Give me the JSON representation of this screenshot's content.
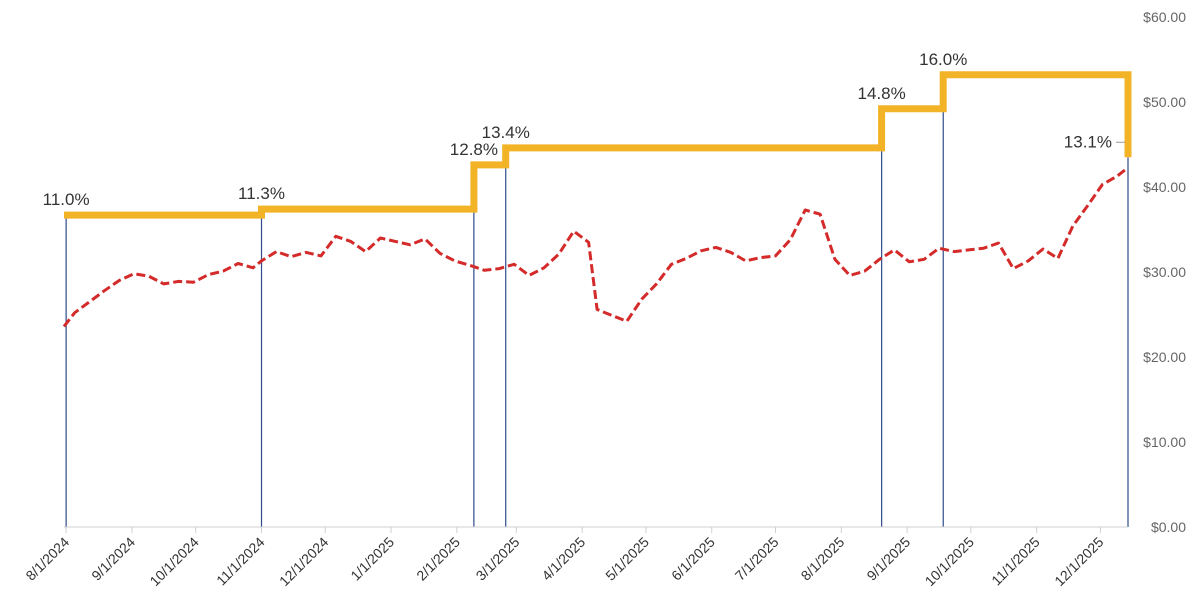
{
  "chart_data": {
    "type": "line",
    "title": "",
    "xlabel": "",
    "ylabel": "",
    "x_ticks": [
      "8/1/2024",
      "9/1/2024",
      "10/1/2024",
      "11/1/2024",
      "12/1/2024",
      "1/1/2025",
      "2/1/2025",
      "3/1/2025",
      "4/1/2025",
      "5/1/2025",
      "6/1/2025",
      "7/1/2025",
      "8/1/2025",
      "9/1/2025",
      "10/1/2025",
      "11/1/2025",
      "12/1/2025"
    ],
    "y_ticks": [
      "$0.00",
      "$10.00",
      "$20.00",
      "$30.00",
      "$40.00",
      "$50.00",
      "$60.00"
    ],
    "ylim": [
      0,
      60
    ],
    "xlim": [
      "2024-07-31",
      "2025-12-14"
    ],
    "grid": false,
    "colors": {
      "price": "#d42a2a",
      "yield": "#f2b326",
      "event_lines": "#2f4b8c"
    },
    "series": [
      {
        "style": "dashed",
        "points": [
          [
            "2024-07-31",
            23.6
          ],
          [
            "2024-08-05",
            25.2
          ],
          [
            "2024-08-12",
            26.5
          ],
          [
            "2024-08-19",
            27.8
          ],
          [
            "2024-08-26",
            29.0
          ],
          [
            "2024-09-02",
            29.8
          ],
          [
            "2024-09-09",
            29.5
          ],
          [
            "2024-09-16",
            28.6
          ],
          [
            "2024-09-23",
            28.9
          ],
          [
            "2024-09-30",
            28.8
          ],
          [
            "2024-10-07",
            29.7
          ],
          [
            "2024-10-14",
            30.1
          ],
          [
            "2024-10-21",
            31.0
          ],
          [
            "2024-10-28",
            30.5
          ],
          [
            "2024-11-01",
            31.3
          ],
          [
            "2024-11-08",
            32.4
          ],
          [
            "2024-11-15",
            31.8
          ],
          [
            "2024-11-22",
            32.3
          ],
          [
            "2024-11-29",
            31.9
          ],
          [
            "2024-12-06",
            34.2
          ],
          [
            "2024-12-13",
            33.6
          ],
          [
            "2024-12-20",
            32.4
          ],
          [
            "2024-12-27",
            34.0
          ],
          [
            "2025-01-03",
            33.6
          ],
          [
            "2025-01-10",
            33.2
          ],
          [
            "2025-01-17",
            33.9
          ],
          [
            "2025-01-24",
            32.2
          ],
          [
            "2025-01-31",
            31.3
          ],
          [
            "2025-02-07",
            30.8
          ],
          [
            "2025-02-14",
            30.2
          ],
          [
            "2025-02-21",
            30.4
          ],
          [
            "2025-02-28",
            30.9
          ],
          [
            "2025-03-07",
            29.6
          ],
          [
            "2025-03-14",
            30.5
          ],
          [
            "2025-03-21",
            32.1
          ],
          [
            "2025-03-28",
            34.8
          ],
          [
            "2025-04-04",
            33.5
          ],
          [
            "2025-04-08",
            25.6
          ],
          [
            "2025-04-15",
            24.9
          ],
          [
            "2025-04-22",
            24.2
          ],
          [
            "2025-04-29",
            26.8
          ],
          [
            "2025-05-06",
            28.6
          ],
          [
            "2025-05-13",
            30.9
          ],
          [
            "2025-05-20",
            31.6
          ],
          [
            "2025-05-27",
            32.5
          ],
          [
            "2025-06-03",
            32.9
          ],
          [
            "2025-06-10",
            32.3
          ],
          [
            "2025-06-17",
            31.3
          ],
          [
            "2025-06-24",
            31.7
          ],
          [
            "2025-07-01",
            31.9
          ],
          [
            "2025-07-08",
            33.8
          ],
          [
            "2025-07-15",
            37.3
          ],
          [
            "2025-07-22",
            36.8
          ],
          [
            "2025-07-29",
            31.5
          ],
          [
            "2025-08-05",
            29.6
          ],
          [
            "2025-08-12",
            30.1
          ],
          [
            "2025-08-19",
            31.5
          ],
          [
            "2025-08-26",
            32.6
          ],
          [
            "2025-09-02",
            31.2
          ],
          [
            "2025-09-09",
            31.5
          ],
          [
            "2025-09-16",
            32.8
          ],
          [
            "2025-09-23",
            32.4
          ],
          [
            "2025-09-30",
            32.6
          ],
          [
            "2025-10-07",
            32.8
          ],
          [
            "2025-10-14",
            33.4
          ],
          [
            "2025-10-21",
            30.4
          ],
          [
            "2025-10-28",
            31.3
          ],
          [
            "2025-11-04",
            32.7
          ],
          [
            "2025-11-11",
            31.6
          ],
          [
            "2025-11-18",
            35.4
          ],
          [
            "2025-11-25",
            37.8
          ],
          [
            "2025-12-02",
            40.3
          ],
          [
            "2025-12-09",
            41.3
          ],
          [
            "2025-12-14",
            42.3
          ]
        ]
      },
      {
        "style": "step",
        "points": [
          [
            "2024-07-31",
            36.7
          ],
          [
            "2024-11-01",
            37.4
          ],
          [
            "2025-02-09",
            42.6
          ],
          [
            "2025-02-24",
            44.6
          ],
          [
            "2025-08-20",
            49.2
          ],
          [
            "2025-09-18",
            53.2
          ],
          [
            "2025-12-13",
            53.2
          ],
          [
            "2025-12-14",
            43.5
          ]
        ]
      }
    ],
    "annotations": [
      {
        "text": "11.0%",
        "x": "2024-08-01",
        "y": 36.7
      },
      {
        "text": "11.3%",
        "x": "2024-11-01",
        "y": 37.4
      },
      {
        "text": "12.8%",
        "x": "2025-02-09",
        "y": 42.6
      },
      {
        "text": "13.4%",
        "x": "2025-02-24",
        "y": 44.6
      },
      {
        "text": "14.8%",
        "x": "2025-08-20",
        "y": 49.2
      },
      {
        "text": "16.0%",
        "x": "2025-09-18",
        "y": 53.2
      },
      {
        "text": "13.1%",
        "x": "2025-12-14",
        "y": 43.5
      }
    ],
    "event_lines": [
      "2024-08-01",
      "2024-11-01",
      "2025-02-09",
      "2025-02-24",
      "2025-08-20",
      "2025-09-18",
      "2025-12-14"
    ]
  }
}
